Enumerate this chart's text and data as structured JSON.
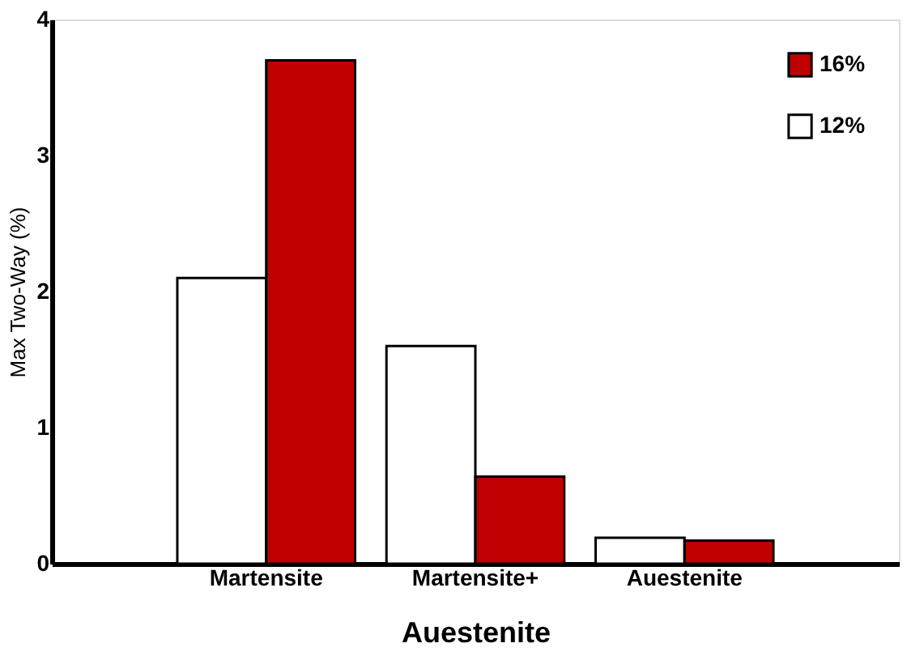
{
  "chart_data": {
    "type": "bar",
    "xlabel": "Auestenite",
    "ylabel": "Max Two-Way (%)",
    "categories": [
      "Martensite",
      "Martensite+",
      "Auestenite"
    ],
    "series": [
      {
        "name": "12%",
        "color": "#ffffff",
        "values": [
          2.1,
          1.6,
          0.19
        ]
      },
      {
        "name": "16%",
        "color": "#c00000",
        "values": [
          3.7,
          0.64,
          0.17
        ]
      }
    ],
    "ylim": [
      0,
      4
    ],
    "yticks": [
      0,
      1,
      2,
      3,
      4
    ],
    "grid": false,
    "legend": "top right"
  }
}
